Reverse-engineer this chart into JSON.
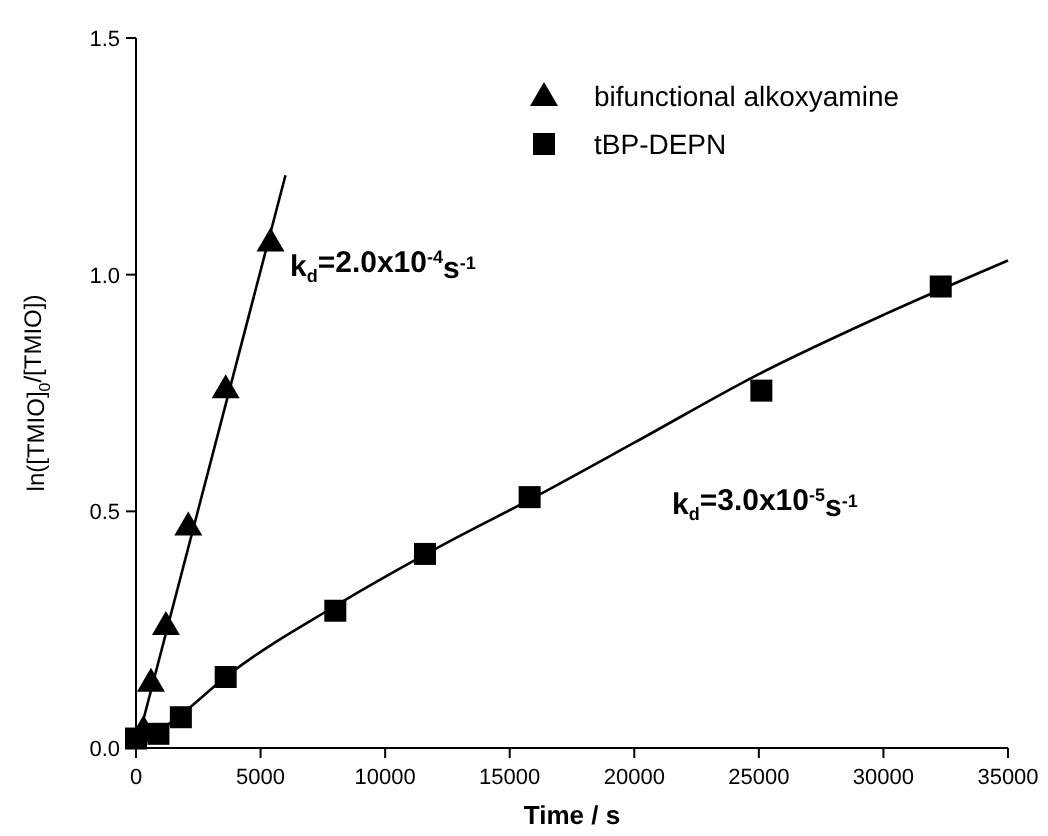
{
  "chart_data": {
    "type": "scatter",
    "xlabel": "Time / s",
    "ylabel": "ln([TMIO]$_{0}$/[TMIO])",
    "xlim": [
      0,
      35000
    ],
    "ylim": [
      0,
      1.5
    ],
    "xticks": [
      0,
      5000,
      10000,
      15000,
      20000,
      25000,
      30000,
      35000
    ],
    "yticks": [
      {
        "value": 0,
        "label": "0.0"
      },
      {
        "value": 0.5,
        "label": "0.5"
      },
      {
        "value": 1,
        "label": "1.0"
      },
      {
        "value": 1.5,
        "label": "1.5"
      }
    ],
    "grid": false,
    "legend": "top right",
    "series": [
      {
        "name": "bifunctional alkoxyamine",
        "marker": "triangle",
        "color": "#000000",
        "x": [
          300,
          600,
          1200,
          2100,
          3600,
          5400
        ],
        "values": [
          0.04,
          0.14,
          0.26,
          0.47,
          0.76,
          1.07
        ]
      },
      {
        "name": "tBP-DEPN",
        "marker": "square",
        "color": "#000000",
        "x": [
          0,
          900,
          1800,
          3600,
          8000,
          11600,
          15800,
          25100,
          32300
        ],
        "values": [
          0.02,
          0.03,
          0.065,
          0.15,
          0.29,
          0.41,
          0.53,
          0.755,
          0.975
        ]
      },
      {
        "type": "line",
        "marker": "none",
        "color": "#000000",
        "x": [
          0,
          6000
        ],
        "values": [
          0,
          1.21
        ]
      },
      {
        "type": "line",
        "marker": "none",
        "color": "#000000",
        "x": [
          0,
          1800,
          3600,
          8000,
          12000,
          16000,
          20000,
          25000,
          30000,
          35000
        ],
        "values": [
          0,
          0.07,
          0.15,
          0.3,
          0.42,
          0.53,
          0.645,
          0.79,
          0.915,
          1.03
        ]
      }
    ],
    "annotations": [
      "k$_{d}$=2.0x10$^{-4}$s$^{-1}$",
      "k$_{d}$=3.0x10$^{-5}$s$^{-1}$"
    ]
  }
}
